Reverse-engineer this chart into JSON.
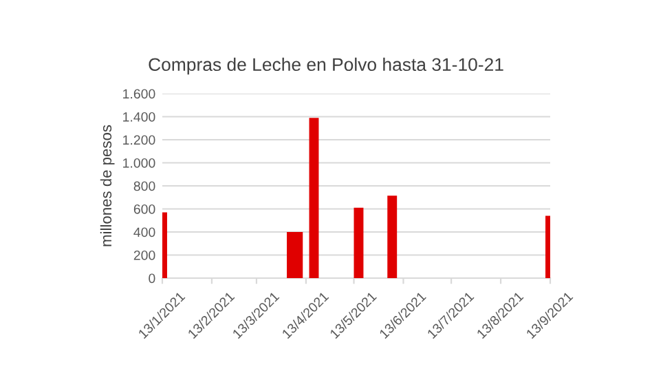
{
  "chart_data": {
    "type": "bar",
    "title": "Compras de Leche en Polvo hasta 31-10-21",
    "ylabel": "millones de pesos",
    "x": [
      "2021-01-13",
      "2021-04-04",
      "2021-04-08",
      "2021-04-18",
      "2021-05-16",
      "2021-06-06",
      "2021-09-13"
    ],
    "series": [
      {
        "color": "#e00000",
        "values": [
          570,
          400,
          400,
          1390,
          610,
          715,
          540
        ]
      }
    ],
    "xlim": [
      "2021-01-13",
      "2021-09-13"
    ],
    "xticks": [
      {
        "value": "2021-01-13",
        "label": "13/1/2021"
      },
      {
        "value": "2021-02-13",
        "label": "13/2/2021"
      },
      {
        "value": "2021-03-13",
        "label": "13/3/2021"
      },
      {
        "value": "2021-04-13",
        "label": "13/4/2021"
      },
      {
        "value": "2021-05-13",
        "label": "13/5/2021"
      },
      {
        "value": "2021-06-13",
        "label": "13/6/2021"
      },
      {
        "value": "2021-07-13",
        "label": "13/7/2021"
      },
      {
        "value": "2021-08-13",
        "label": "13/8/2021"
      },
      {
        "value": "2021-09-13",
        "label": "13/9/2021"
      }
    ],
    "ylim": [
      0,
      1600
    ],
    "yticks": [
      0,
      200,
      400,
      600,
      800,
      {
        "value": 1000,
        "label": "1.000"
      },
      {
        "value": 1200,
        "label": "1.200"
      },
      {
        "value": 1400,
        "label": "1.400"
      },
      {
        "value": 1600,
        "label": "1.600"
      }
    ],
    "grid": "y"
  }
}
